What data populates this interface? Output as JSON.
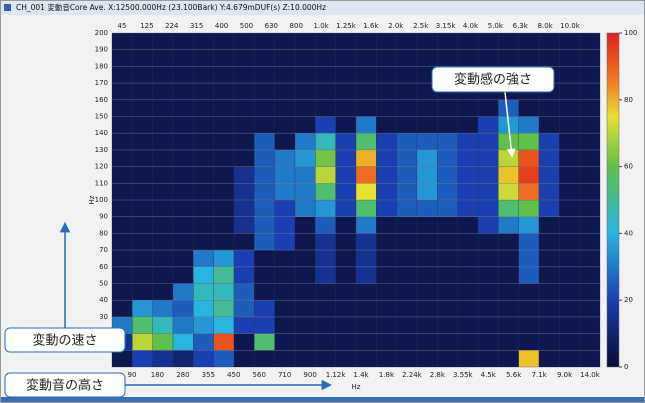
{
  "chart_data": {
    "type": "heatmap",
    "title": "CH_001 変動音Core Ave. X:12500.000Hz (23.100Bark) Y:4.679mDUF(s) Z:10.000Hz",
    "x_top_labels": [
      "45",
      "125",
      "224",
      "315",
      "400",
      "500",
      "630",
      "800",
      "1.0k",
      "1.25k",
      "1.6k",
      "2.0k",
      "2.5k",
      "3.15k",
      "4.0k",
      "5.0k",
      "6.3k",
      "8.0k",
      "10.0k"
    ],
    "x_bottom_labels": [
      "90",
      "180",
      "280",
      "355",
      "450",
      "560",
      "710",
      "900",
      "1.12k",
      "1.4k",
      "1.8k",
      "2.24k",
      "2.8k",
      "3.55k",
      "4.5k",
      "5.6k",
      "7.1k",
      "9.0k",
      "14.0k"
    ],
    "xlabel": "Hz",
    "ylabel": "Hz",
    "ylim": [
      0,
      200
    ],
    "yticks": [
      10,
      20,
      30,
      40,
      50,
      60,
      70,
      80,
      90,
      100,
      110,
      120,
      130,
      140,
      150,
      160,
      170,
      180,
      190,
      200
    ],
    "clim": [
      0,
      100
    ],
    "cticks": [
      0,
      20,
      40,
      60,
      80,
      100
    ],
    "values": [
      [
        5,
        20,
        15,
        10,
        20,
        25,
        5,
        5,
        5,
        5,
        5,
        5,
        5,
        5,
        5,
        5,
        5,
        5,
        5,
        5,
        78,
        5,
        5,
        5
      ],
      [
        15,
        70,
        60,
        40,
        25,
        92,
        5,
        55,
        5,
        5,
        5,
        5,
        5,
        5,
        5,
        5,
        5,
        5,
        5,
        5,
        5,
        5,
        5,
        5
      ],
      [
        30,
        55,
        45,
        30,
        35,
        40,
        20,
        20,
        5,
        5,
        5,
        5,
        5,
        5,
        5,
        5,
        5,
        5,
        5,
        5,
        5,
        5,
        5,
        5
      ],
      [
        5,
        35,
        30,
        25,
        40,
        50,
        25,
        20,
        5,
        5,
        5,
        5,
        5,
        5,
        5,
        5,
        5,
        5,
        5,
        5,
        5,
        5,
        5,
        5
      ],
      [
        5,
        5,
        5,
        30,
        45,
        45,
        25,
        5,
        5,
        5,
        5,
        5,
        5,
        5,
        5,
        5,
        5,
        5,
        5,
        5,
        5,
        5,
        5,
        5
      ],
      [
        5,
        5,
        5,
        5,
        40,
        50,
        20,
        5,
        5,
        5,
        15,
        5,
        15,
        5,
        5,
        5,
        5,
        5,
        5,
        5,
        25,
        5,
        5,
        5
      ],
      [
        5,
        5,
        5,
        5,
        30,
        35,
        20,
        5,
        5,
        5,
        15,
        5,
        15,
        5,
        5,
        5,
        5,
        5,
        5,
        5,
        25,
        5,
        5,
        5
      ],
      [
        5,
        5,
        5,
        5,
        5,
        5,
        5,
        25,
        20,
        5,
        15,
        5,
        15,
        5,
        5,
        5,
        5,
        5,
        5,
        5,
        25,
        5,
        5,
        5
      ],
      [
        5,
        5,
        5,
        5,
        5,
        5,
        15,
        25,
        20,
        5,
        25,
        5,
        30,
        5,
        5,
        5,
        5,
        5,
        20,
        30,
        35,
        5,
        5,
        5
      ],
      [
        5,
        5,
        5,
        5,
        5,
        5,
        15,
        25,
        20,
        30,
        35,
        20,
        55,
        20,
        25,
        25,
        25,
        20,
        20,
        55,
        60,
        20,
        5,
        5
      ],
      [
        5,
        5,
        5,
        5,
        5,
        5,
        15,
        25,
        30,
        30,
        55,
        20,
        75,
        20,
        25,
        35,
        25,
        20,
        20,
        72,
        88,
        20,
        5,
        5
      ],
      [
        5,
        5,
        5,
        5,
        5,
        5,
        15,
        25,
        30,
        30,
        70,
        20,
        88,
        20,
        25,
        35,
        25,
        20,
        20,
        78,
        95,
        20,
        5,
        5
      ],
      [
        5,
        5,
        5,
        5,
        5,
        5,
        5,
        25,
        30,
        35,
        62,
        20,
        80,
        20,
        25,
        35,
        25,
        20,
        20,
        70,
        92,
        20,
        5,
        5
      ],
      [
        5,
        5,
        5,
        5,
        5,
        5,
        5,
        25,
        5,
        30,
        45,
        20,
        55,
        20,
        25,
        25,
        25,
        20,
        20,
        60,
        60,
        20,
        5,
        5
      ],
      [
        5,
        5,
        5,
        5,
        5,
        5,
        5,
        5,
        5,
        5,
        20,
        5,
        30,
        5,
        5,
        5,
        5,
        5,
        20,
        35,
        30,
        5,
        5,
        5
      ],
      [
        5,
        5,
        5,
        5,
        5,
        5,
        5,
        5,
        5,
        5,
        5,
        5,
        5,
        5,
        5,
        5,
        5,
        5,
        5,
        25,
        5,
        5,
        5,
        5
      ],
      [
        5,
        5,
        5,
        5,
        5,
        5,
        5,
        5,
        5,
        5,
        5,
        5,
        5,
        5,
        5,
        5,
        5,
        5,
        5,
        5,
        5,
        5,
        5,
        5
      ],
      [
        5,
        5,
        5,
        5,
        5,
        5,
        5,
        5,
        5,
        5,
        5,
        5,
        5,
        5,
        5,
        5,
        5,
        5,
        5,
        5,
        5,
        5,
        5,
        5
      ],
      [
        5,
        5,
        5,
        5,
        5,
        5,
        5,
        5,
        5,
        5,
        5,
        5,
        5,
        5,
        5,
        5,
        5,
        5,
        5,
        5,
        5,
        5,
        5,
        5
      ],
      [
        5,
        5,
        5,
        5,
        5,
        5,
        5,
        5,
        5,
        5,
        5,
        5,
        5,
        5,
        5,
        5,
        5,
        5,
        5,
        5,
        5,
        5,
        5,
        5
      ]
    ],
    "annotations": [
      "変動感の強さ",
      "変動の速さ",
      "変動音の高さ"
    ]
  }
}
